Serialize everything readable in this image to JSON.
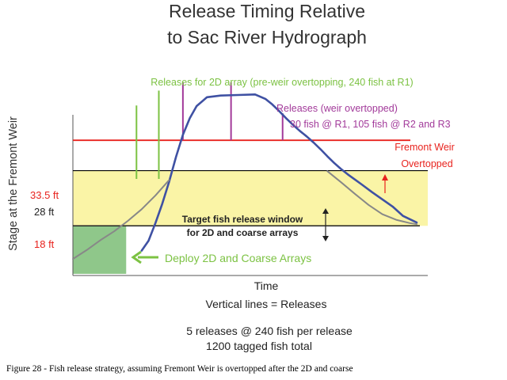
{
  "chart_data": {
    "type": "line",
    "title": "Release Timing Relative to Sac River Hydrograph",
    "title_lines": [
      "Release Timing Relative",
      "to Sac River Hydrograph"
    ],
    "xlabel": "Time",
    "ylabel": "Stage at the Fremont Weir",
    "xlim": [
      0,
      100
    ],
    "ylim": [
      9,
      44
    ],
    "x_axis_note": "Vertical lines = Releases",
    "series": [
      {
        "color": "#3f51a3",
        "x": [
          20,
          22,
          24,
          26,
          28,
          30,
          32,
          34,
          36,
          39,
          43,
          48,
          53,
          56,
          58,
          60,
          62,
          64,
          66,
          68,
          70,
          72,
          74,
          76,
          78,
          80,
          82,
          84,
          87,
          90,
          93,
          96,
          100
        ],
        "y": [
          13.5,
          15.3,
          18.5,
          22.0,
          26.0,
          30.5,
          34.5,
          37.5,
          39.7,
          41.3,
          41.6,
          41.7,
          41.8,
          41.0,
          40.0,
          38.8,
          37.5,
          36.3,
          35.2,
          34.2,
          33.1,
          31.9,
          30.6,
          29.4,
          28.3,
          27.3,
          26.4,
          25.5,
          24.1,
          22.8,
          21.5,
          19.8,
          18.6
        ]
      },
      {
        "color": "#888888",
        "x": [
          0,
          4,
          8,
          12,
          16,
          20,
          24,
          28
        ],
        "y": [
          12.0,
          13.6,
          15.4,
          17.0,
          18.9,
          21.0,
          23.5,
          26.3
        ]
      },
      {
        "color": "#888888",
        "x": [
          74,
          78,
          82,
          86,
          90,
          94,
          98,
          100
        ],
        "y": [
          27.9,
          25.9,
          23.8,
          21.8,
          20.1,
          19.1,
          18.5,
          18.3
        ]
      }
    ],
    "reference_lines": [
      {
        "label": "33.5 ft",
        "y": 33.5,
        "color": "#e8231e"
      },
      {
        "label": "28 ft",
        "y": 28,
        "color": "#000000"
      },
      {
        "label": "18 ft",
        "y": 18,
        "color": "#222222"
      }
    ],
    "release_lines": [
      {
        "x": 18.5,
        "y_top": 39.8,
        "color": "#7cc243"
      },
      {
        "x": 25,
        "y_top": 42.5,
        "color": "#7cc243"
      },
      {
        "x": 32,
        "y_top": 44.0,
        "color": "#a23a9a"
      },
      {
        "x": 46,
        "y_top": 44.0,
        "color": "#a23a9a"
      },
      {
        "x": 61,
        "y_top": 38.4,
        "color": "#a23a9a"
      }
    ],
    "target_band": {
      "y": [
        18,
        28
      ],
      "color": "#faf4a6"
    },
    "deploy_box": {
      "x": [
        0,
        15.5
      ],
      "y": [
        9.3,
        18
      ],
      "color": "#8fc78a"
    },
    "annotations": {
      "green_releases": "Releases for 2D array (pre-weir overtopping, 240 fish at R1)",
      "purple_releases_1": "Releases (weir overtopped)",
      "purple_releases_2": "30 fish @ R1,  105 fish @ R2 and R3",
      "weir_1": "Fremont Weir",
      "weir_2": "Overtopped",
      "target_1": "Target fish release window",
      "target_2": "for 2D and coarse arrays",
      "deploy": "Deploy 2D and Coarse Arrays",
      "summary_1": "5 releases @ 240 fish per release",
      "summary_2": "1200 tagged fish total"
    },
    "colors": {
      "hydrograph": "#3f51a3",
      "weir": "#e8231e",
      "green": "#7cc243",
      "purple": "#a23a9a",
      "target_band": "#faf4a6",
      "deploy_box": "#8fc78a",
      "deploy_arrow": "#7cc243"
    }
  },
  "caption": "Figure 28 - Fish release strategy, assuming Fremont Weir is overtopped after the 2D and coarse"
}
